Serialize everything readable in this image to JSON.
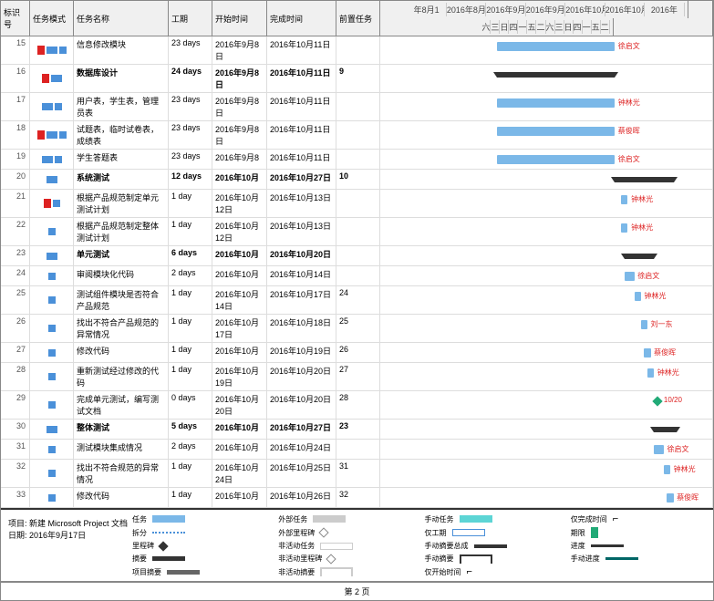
{
  "headers": {
    "id": "标识号",
    "mode": "任务模式",
    "name": "任务名称",
    "duration": "工期",
    "start": "开始时间",
    "end": "完成时间",
    "pred": "前置任务"
  },
  "timeline": [
    "年8月1",
    "2016年8月22",
    "2016年9月1",
    "2016年9月",
    "2016年10月",
    "2016年10月",
    "2016年"
  ],
  "timeline2": [
    "六",
    "三",
    "日",
    "四",
    "一",
    "五",
    "二",
    "六",
    "三",
    "日",
    "四",
    "一",
    "五",
    "二"
  ],
  "tasks": [
    {
      "id": "15",
      "name": "信息修改模块",
      "dur": "23 days",
      "start": "2016年9月8日",
      "end": "2016年10月11日",
      "pred": "",
      "bold": false,
      "barLeft": 35,
      "barWidth": 36,
      "label": "徐启文",
      "labelLeft": 72,
      "icons": [
        "red",
        "blue",
        "arrow"
      ]
    },
    {
      "id": "16",
      "name": "数据库设计",
      "dur": "24 days",
      "start": "2016年9月8日",
      "end": "2016年10月11日",
      "pred": "9",
      "bold": true,
      "barLeft": 35,
      "barWidth": 36,
      "summary": true,
      "icons": [
        "red",
        "blue"
      ]
    },
    {
      "id": "17",
      "name": "用户表，学生表，管理员表",
      "dur": "23 days",
      "start": "2016年9月8日",
      "end": "2016年10月11日",
      "pred": "",
      "bold": false,
      "barLeft": 35,
      "barWidth": 36,
      "label": "钟林光",
      "labelLeft": 72,
      "icons": [
        "blue",
        "arrow"
      ]
    },
    {
      "id": "18",
      "name": "试题表，临时试卷表，成绩表",
      "dur": "23 days",
      "start": "2016年9月8日",
      "end": "2016年10月11日",
      "pred": "",
      "bold": false,
      "barLeft": 35,
      "barWidth": 36,
      "label": "蔡俊晖",
      "labelLeft": 72,
      "icons": [
        "red",
        "blue",
        "arrow"
      ]
    },
    {
      "id": "19",
      "name": "学生答题表",
      "dur": "23 days",
      "start": "2016年9月8",
      "end": "2016年10月11日",
      "pred": "",
      "bold": false,
      "barLeft": 35,
      "barWidth": 36,
      "label": "徐启文",
      "labelLeft": 72,
      "icons": [
        "blue",
        "arrow"
      ]
    },
    {
      "id": "20",
      "name": "系统测试",
      "dur": "12 days",
      "start": "2016年10月",
      "end": "2016年10月27日",
      "pred": "10",
      "bold": true,
      "barLeft": 71,
      "barWidth": 18,
      "summary": true,
      "icons": [
        "blue"
      ]
    },
    {
      "id": "21",
      "name": "根据产品规范制定单元测试计划",
      "dur": "1 day",
      "start": "2016年10月12日",
      "end": "2016年10月13日",
      "pred": "",
      "bold": false,
      "barLeft": 73,
      "barWidth": 2,
      "label": "钟林光",
      "labelLeft": 76,
      "icons": [
        "red",
        "arrow"
      ]
    },
    {
      "id": "22",
      "name": "根据产品规范制定整体测试计划",
      "dur": "1 day",
      "start": "2016年10月12日",
      "end": "2016年10月13日",
      "pred": "",
      "bold": false,
      "barLeft": 73,
      "barWidth": 2,
      "label": "钟林光",
      "labelLeft": 76,
      "icons": [
        "arrow"
      ]
    },
    {
      "id": "23",
      "name": "单元测试",
      "dur": "6 days",
      "start": "2016年10月",
      "end": "2016年10月20日",
      "pred": "",
      "bold": true,
      "barLeft": 74,
      "barWidth": 9,
      "summary": true,
      "icons": [
        "blue"
      ]
    },
    {
      "id": "24",
      "name": "审阅模块化代码",
      "dur": "2 days",
      "start": "2016年10月",
      "end": "2016年10月14日",
      "pred": "",
      "bold": false,
      "barLeft": 74,
      "barWidth": 3,
      "label": "徐启文",
      "labelLeft": 78,
      "icons": [
        "arrow"
      ]
    },
    {
      "id": "25",
      "name": "测试组件模块是否符合产品规范",
      "dur": "1 day",
      "start": "2016年10月14日",
      "end": "2016年10月17日",
      "pred": "24",
      "bold": false,
      "barLeft": 77,
      "barWidth": 2,
      "label": "钟林光",
      "labelLeft": 80,
      "icons": [
        "arrow"
      ]
    },
    {
      "id": "26",
      "name": "找出不符合产品规范的异常情况",
      "dur": "1 day",
      "start": "2016年10月17日",
      "end": "2016年10月18日",
      "pred": "25",
      "bold": false,
      "barLeft": 79,
      "barWidth": 2,
      "label": "刘一东",
      "labelLeft": 82,
      "icons": [
        "arrow"
      ]
    },
    {
      "id": "27",
      "name": "修改代码",
      "dur": "1 day",
      "start": "2016年10月",
      "end": "2016年10月19日",
      "pred": "26",
      "bold": false,
      "barLeft": 80,
      "barWidth": 2,
      "label": "蔡俊晖",
      "labelLeft": 83,
      "icons": [
        "arrow"
      ]
    },
    {
      "id": "28",
      "name": "重新测试经过修改的代码",
      "dur": "1 day",
      "start": "2016年10月19日",
      "end": "2016年10月20日",
      "pred": "27",
      "bold": false,
      "barLeft": 81,
      "barWidth": 2,
      "label": "钟林光",
      "labelLeft": 84,
      "icons": [
        "arrow"
      ]
    },
    {
      "id": "29",
      "name": "完成单元测试，编写测试文档",
      "dur": "0 days",
      "start": "2016年10月20日",
      "end": "2016年10月20日",
      "pred": "28",
      "bold": false,
      "milestone": true,
      "msLeft": 83,
      "label": "10/20",
      "labelLeft": 86,
      "icons": [
        "arrow"
      ]
    },
    {
      "id": "30",
      "name": "整体测试",
      "dur": "5 days",
      "start": "2016年10月",
      "end": "2016年10月27日",
      "pred": "23",
      "bold": true,
      "barLeft": 83,
      "barWidth": 7,
      "summary": true,
      "icons": [
        "blue"
      ]
    },
    {
      "id": "31",
      "name": "测试模块集成情况",
      "dur": "2 days",
      "start": "2016年10月",
      "end": "2016年10月24日",
      "pred": "",
      "bold": false,
      "barLeft": 83,
      "barWidth": 3,
      "label": "徐启文",
      "labelLeft": 87,
      "icons": [
        "arrow"
      ]
    },
    {
      "id": "32",
      "name": "找出不符合规范的异常情况",
      "dur": "1 day",
      "start": "2016年10月24日",
      "end": "2016年10月25日",
      "pred": "31",
      "bold": false,
      "barLeft": 86,
      "barWidth": 2,
      "label": "钟林光",
      "labelLeft": 89,
      "icons": [
        "arrow"
      ]
    },
    {
      "id": "33",
      "name": "修改代码",
      "dur": "1 day",
      "start": "2016年10月",
      "end": "2016年10月26日",
      "pred": "32",
      "bold": false,
      "barLeft": 87,
      "barWidth": 2,
      "label": "蔡俊晖",
      "labelLeft": 90,
      "icons": [
        "arrow"
      ]
    }
  ],
  "project": {
    "label": "项目:",
    "name": "新建 Microsoft Project 文档",
    "dateLabel": "日期:",
    "date": "2016年9月17日"
  },
  "legend": {
    "task": "任务",
    "split": "拆分",
    "milestone": "里程碑",
    "summary": "摘要",
    "psummary": "项目摘要",
    "ext_task": "外部任务",
    "ext_ms": "外部里程碑",
    "inactive": "非活动任务",
    "inactive_ms": "非活动里程碑",
    "inactive_sum": "非活动摘要",
    "manual": "手动任务",
    "dur_only": "仅工期",
    "manual_sum": "手动摘要总成",
    "manual_sum2": "手动摘要",
    "start_only": "仅开始时间",
    "finish_only": "仅完成时间",
    "deadline": "期限",
    "progress": "进度",
    "manual_prog": "手动进度"
  },
  "footer": "第 2 页",
  "colors": {
    "task_bar": "#7bb8e8",
    "summary": "#333",
    "label": "#d22",
    "manual": "#5dd5d5"
  }
}
